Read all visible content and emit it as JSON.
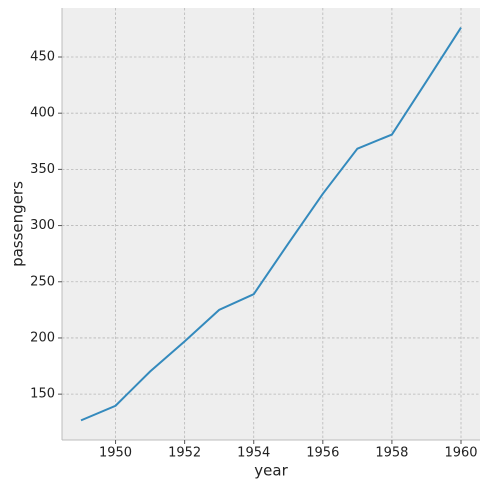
{
  "chart_data": {
    "type": "line",
    "x_label": "year",
    "y_label": "passengers",
    "x": [
      1949,
      1950,
      1951,
      1952,
      1953,
      1954,
      1955,
      1956,
      1957,
      1958,
      1959,
      1960
    ],
    "series": [
      {
        "color": "#348abd",
        "values": [
          126.67,
          139.67,
          170.17,
          197.0,
          225.0,
          238.92,
          284.0,
          328.25,
          368.42,
          381.0,
          428.33,
          476.17
        ]
      }
    ],
    "xlim": [
      1948.45,
      1960.55
    ],
    "xticks": [
      1950,
      1952,
      1954,
      1956,
      1958,
      1960
    ],
    "ylim": [
      109.2,
      493.6
    ],
    "yticks": [
      150,
      200,
      250,
      300,
      350,
      400,
      450
    ],
    "grid": true
  }
}
